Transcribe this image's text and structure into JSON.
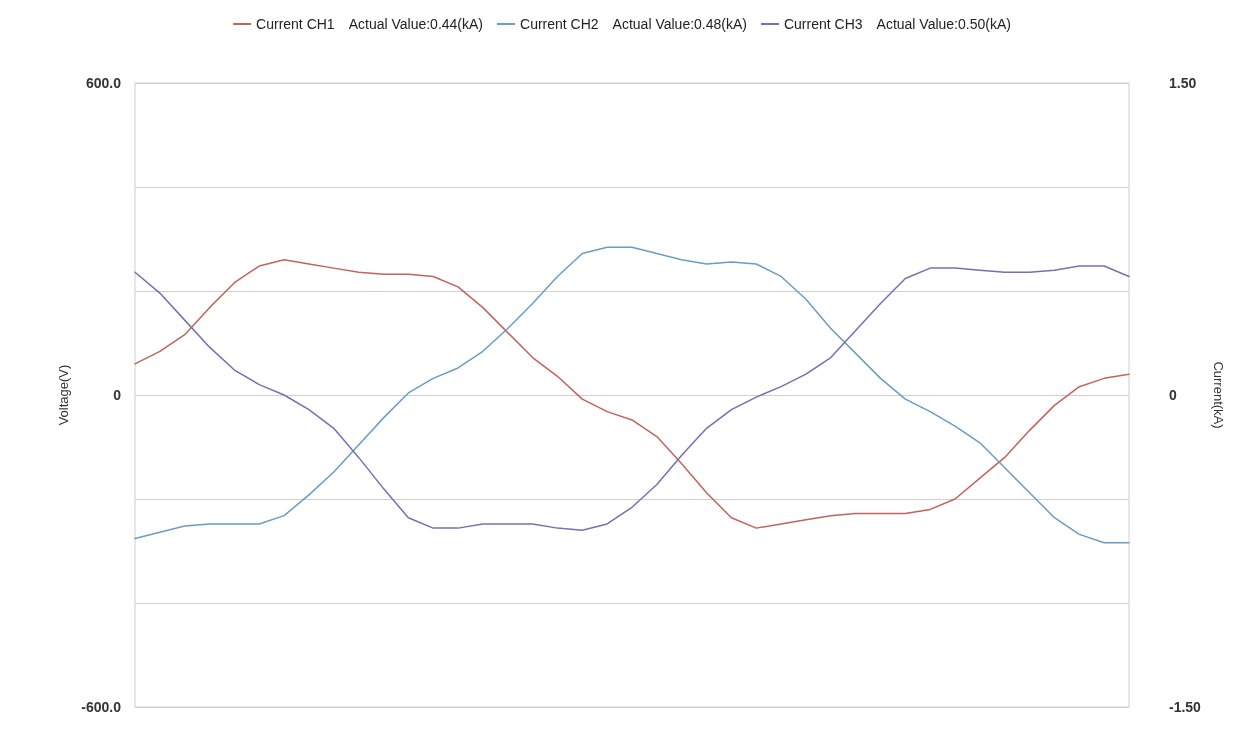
{
  "chart_data": {
    "type": "line",
    "ylabel": "Voltage(V)",
    "y2label": "Current(kA)",
    "categories": [
      null,
      null,
      null,
      null,
      null,
      null,
      null,
      null,
      null,
      null,
      null,
      null,
      null,
      null,
      null,
      null,
      null,
      null,
      null,
      null,
      null,
      null,
      null,
      null,
      null,
      null,
      null,
      null,
      null,
      null,
      null,
      null,
      null,
      null,
      null,
      null,
      null,
      null,
      null,
      null,
      null
    ],
    "series": [
      {
        "name": "Current CH1",
        "color": "#c0645c",
        "axis": "y2",
        "values": [
          0.15,
          0.21,
          0.29,
          0.42,
          0.54,
          0.62,
          0.65,
          0.63,
          0.61,
          0.59,
          0.58,
          0.58,
          0.57,
          0.52,
          0.42,
          0.3,
          0.18,
          0.09,
          -0.02,
          -0.08,
          -0.12,
          -0.2,
          -0.33,
          -0.47,
          -0.59,
          -0.64,
          -0.62,
          -0.6,
          -0.58,
          -0.57,
          -0.57,
          -0.57,
          -0.55,
          -0.5,
          -0.4,
          -0.3,
          -0.17,
          -0.05,
          0.04,
          0.08,
          0.1
        ]
      },
      {
        "name": "Current CH2",
        "color": "#6b9cc4",
        "axis": "y2",
        "values": [
          -0.69,
          -0.66,
          -0.63,
          -0.62,
          -0.62,
          -0.62,
          -0.58,
          -0.48,
          -0.37,
          -0.24,
          -0.11,
          0.01,
          0.08,
          0.13,
          0.21,
          0.32,
          0.44,
          0.57,
          0.68,
          0.71,
          0.71,
          0.68,
          0.65,
          0.63,
          0.64,
          0.63,
          0.57,
          0.46,
          0.32,
          0.2,
          0.08,
          -0.02,
          -0.08,
          -0.15,
          -0.23,
          -0.35,
          -0.47,
          -0.59,
          -0.67,
          -0.71,
          -0.71
        ]
      },
      {
        "name": "Current CH3",
        "color": "#7470b4",
        "axis": "y2",
        "values": [
          0.59,
          0.49,
          0.36,
          0.23,
          0.12,
          0.05,
          0.0,
          -0.07,
          -0.16,
          -0.3,
          -0.45,
          -0.59,
          -0.64,
          -0.64,
          -0.62,
          -0.62,
          -0.62,
          -0.64,
          -0.65,
          -0.62,
          -0.54,
          -0.43,
          -0.29,
          -0.16,
          -0.07,
          -0.01,
          0.04,
          0.1,
          0.18,
          0.31,
          0.44,
          0.56,
          0.61,
          0.61,
          0.6,
          0.59,
          0.59,
          0.6,
          0.62,
          0.62,
          0.57
        ]
      }
    ],
    "annotations": [
      "Actual Value:0.44(kA)",
      "Actual Value:0.48(kA)",
      "Actual Value:0.50(kA)"
    ],
    "ylim": [
      -600,
      600
    ],
    "yticks": [
      {
        "value": -600,
        "label": "-600.0"
      },
      {
        "value": -400,
        "label": null
      },
      {
        "value": -200,
        "label": null
      },
      0,
      {
        "value": 200,
        "label": null
      },
      {
        "value": 400,
        "label": null
      },
      {
        "value": 600,
        "label": "600.0"
      }
    ],
    "y2lim": [
      -1.5,
      1.5
    ],
    "y2ticks": [
      {
        "value": -1.5,
        "label": "-1.50"
      },
      0,
      {
        "value": 1.5,
        "label": "1.50"
      }
    ],
    "grid": true,
    "legend": "top",
    "marker": "none",
    "line_style": "solid"
  }
}
